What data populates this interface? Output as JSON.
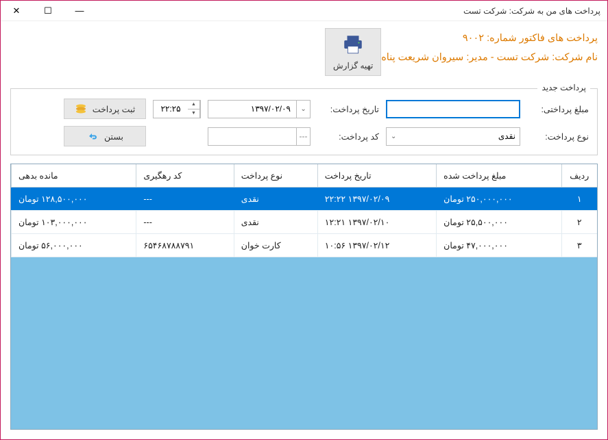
{
  "window": {
    "title": "پرداخت های من به شرکت: شرکت تست"
  },
  "report_btn": {
    "label": "تهیه گزارش"
  },
  "header": {
    "line1": "پرداخت های فاکتور شماره: ۹۰۰۲",
    "line2": "نام شرکت: شرکت تست - مدیر: سیروان شریعت پناه"
  },
  "groupbox": {
    "title": "پرداخت جدید",
    "amount_label": "مبلغ پرداختی:",
    "amount_value": "",
    "date_label": "تاریخ پرداخت:",
    "date_value": "۱۳۹۷/۰۲/۰۹",
    "time_value": "۲۲:۲۵",
    "type_label": "نوع پرداخت:",
    "type_value": "نقدی",
    "code_label": "کد پرداخت:",
    "code_value": "",
    "save_btn": "ثبت پرداخت",
    "close_btn": "بستن"
  },
  "table": {
    "columns": [
      "ردیف",
      "مبلغ پرداخت شده",
      "تاریخ پرداخت",
      "نوع پرداخت",
      "کد رهگیری",
      "مانده بدهی"
    ],
    "rows": [
      {
        "idx": "۱",
        "amount": "۲۵۰,۰۰۰,۰۰۰ تومان",
        "date": "۱۳۹۷/۰۲/۰۹ ۲۲:۲۲",
        "type": "نقدی",
        "code": "---",
        "remain": "۱۲۸,۵۰۰,۰۰۰ تومان",
        "selected": true
      },
      {
        "idx": "۲",
        "amount": "۲۵,۵۰۰,۰۰۰ تومان",
        "date": "۱۳۹۷/۰۲/۱۰ ۱۲:۲۱",
        "type": "نقدی",
        "code": "---",
        "remain": "۱۰۳,۰۰۰,۰۰۰ تومان",
        "selected": false
      },
      {
        "idx": "۳",
        "amount": "۴۷,۰۰۰,۰۰۰ تومان",
        "date": "۱۳۹۷/۰۲/۱۲ ۱۰:۵۶",
        "type": "کارت خوان",
        "code": "۶۵۴۶۸۷۸۸۷۹۱",
        "remain": "۵۶,۰۰۰,۰۰۰ تومان",
        "selected": false
      }
    ]
  },
  "colors": {
    "accent_border": "#c2185b",
    "header_text": "#dd7a00",
    "selection": "#0078d7",
    "table_bg": "#7ec2e6"
  }
}
